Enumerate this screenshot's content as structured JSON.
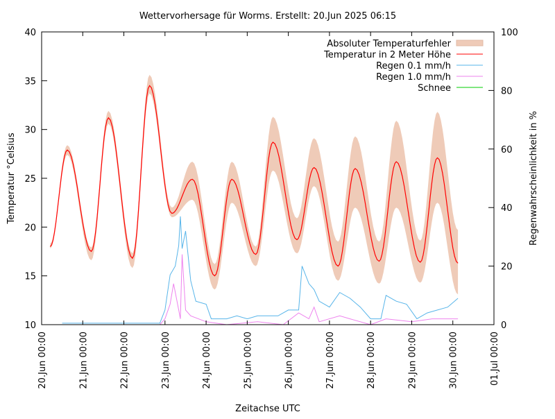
{
  "chart_data": {
    "type": "line",
    "title": "Wettervorhersage für Worms. Erstellt: 20.Jun 2025 06:15",
    "xlabel": "Zeitachse UTC",
    "ylabel": "Temperatur °Celsius",
    "y2label": "Regenwahrscheinlichkeit in %",
    "xlim": [
      "2025-06-20 00:00",
      "2025-07-01 00:00"
    ],
    "ylim": [
      10,
      40
    ],
    "y2lim": [
      0,
      100
    ],
    "xticks": [
      "20.Jun 00:00",
      "21.Jun 00:00",
      "22.Jun 00:00",
      "23.Jun 00:00",
      "24.Jun 00:00",
      "25.Jun 00:00",
      "26.Jun 00:00",
      "27.Jun 00:00",
      "28.Jun 00:00",
      "29.Jun 00:00",
      "30.Jun 00:00",
      "01.Jul 00:00"
    ],
    "yticks": [
      10,
      15,
      20,
      25,
      30,
      35,
      40
    ],
    "y2ticks": [
      0,
      20,
      40,
      60,
      80,
      100
    ],
    "grid": false,
    "legend_position": "top-right",
    "legend": [
      {
        "name": "Absoluter Temperaturfehler",
        "color": "#efcbb8",
        "kind": "band"
      },
      {
        "name": "Temperatur in 2 Meter Höhe",
        "color": "#ff0000",
        "kind": "line"
      },
      {
        "name": "Regen 0.1 mm/h",
        "color": "#56b4e9",
        "kind": "line"
      },
      {
        "name": "Regen 1.0 mm/h",
        "color": "#ee82ee",
        "kind": "line"
      },
      {
        "name": "Schnee",
        "color": "#00cc00",
        "kind": "line"
      }
    ],
    "temperature": {
      "name": "Temperatur in 2 Meter Höhe",
      "axis": "y",
      "points": [
        {
          "t": "2025-06-20 05:00",
          "v": 18.0,
          "lo": 17.8,
          "hi": 18.3
        },
        {
          "t": "2025-06-20 15:00",
          "v": 27.9,
          "lo": 27.4,
          "hi": 28.4
        },
        {
          "t": "2025-06-21 05:00",
          "v": 17.5,
          "lo": 16.6,
          "hi": 17.9
        },
        {
          "t": "2025-06-21 15:00",
          "v": 31.2,
          "lo": 30.6,
          "hi": 31.9
        },
        {
          "t": "2025-06-22 05:00",
          "v": 16.8,
          "lo": 15.8,
          "hi": 17.3
        },
        {
          "t": "2025-06-22 15:00",
          "v": 34.5,
          "lo": 33.7,
          "hi": 35.6
        },
        {
          "t": "2025-06-23 04:00",
          "v": 21.4,
          "lo": 21.0,
          "hi": 22.0
        },
        {
          "t": "2025-06-23 16:00",
          "v": 24.9,
          "lo": 22.8,
          "hi": 26.7
        },
        {
          "t": "2025-06-24 05:00",
          "v": 15.0,
          "lo": 13.6,
          "hi": 16.2
        },
        {
          "t": "2025-06-24 15:00",
          "v": 24.9,
          "lo": 22.5,
          "hi": 26.7
        },
        {
          "t": "2025-06-25 05:00",
          "v": 17.2,
          "lo": 16.0,
          "hi": 18.0
        },
        {
          "t": "2025-06-25 15:00",
          "v": 28.7,
          "lo": 25.8,
          "hi": 31.3
        },
        {
          "t": "2025-06-26 05:00",
          "v": 18.7,
          "lo": 17.3,
          "hi": 20.9
        },
        {
          "t": "2025-06-26 15:00",
          "v": 26.1,
          "lo": 24.2,
          "hi": 29.1
        },
        {
          "t": "2025-06-27 05:00",
          "v": 16.0,
          "lo": 14.5,
          "hi": 18.5
        },
        {
          "t": "2025-06-27 15:00",
          "v": 26.0,
          "lo": 22.0,
          "hi": 29.3
        },
        {
          "t": "2025-06-28 05:00",
          "v": 16.5,
          "lo": 14.2,
          "hi": 18.5
        },
        {
          "t": "2025-06-28 15:00",
          "v": 26.7,
          "lo": 22.0,
          "hi": 30.9
        },
        {
          "t": "2025-06-29 05:00",
          "v": 16.4,
          "lo": 14.3,
          "hi": 18.6
        },
        {
          "t": "2025-06-29 15:00",
          "v": 27.1,
          "lo": 22.5,
          "hi": 31.8
        },
        {
          "t": "2025-06-30 03:00",
          "v": 16.3,
          "lo": 13.1,
          "hi": 19.7
        }
      ]
    },
    "rain01": {
      "name": "Regen 0.1 mm/h",
      "axis": "y2",
      "points": [
        {
          "t": "2025-06-20 12:00",
          "v": 0.5
        },
        {
          "t": "2025-06-21 12:00",
          "v": 0.5
        },
        {
          "t": "2025-06-22 12:00",
          "v": 0.5
        },
        {
          "t": "2025-06-22 21:00",
          "v": 0.5
        },
        {
          "t": "2025-06-23 00:00",
          "v": 5
        },
        {
          "t": "2025-06-23 03:00",
          "v": 17
        },
        {
          "t": "2025-06-23 06:00",
          "v": 20
        },
        {
          "t": "2025-06-23 08:00",
          "v": 27
        },
        {
          "t": "2025-06-23 09:00",
          "v": 37
        },
        {
          "t": "2025-06-23 10:00",
          "v": 26
        },
        {
          "t": "2025-06-23 12:00",
          "v": 32
        },
        {
          "t": "2025-06-23 15:00",
          "v": 15
        },
        {
          "t": "2025-06-23 18:00",
          "v": 8
        },
        {
          "t": "2025-06-24 00:00",
          "v": 7
        },
        {
          "t": "2025-06-24 03:00",
          "v": 2
        },
        {
          "t": "2025-06-24 12:00",
          "v": 2
        },
        {
          "t": "2025-06-24 18:00",
          "v": 3
        },
        {
          "t": "2025-06-25 00:00",
          "v": 2
        },
        {
          "t": "2025-06-25 06:00",
          "v": 3
        },
        {
          "t": "2025-06-25 18:00",
          "v": 3
        },
        {
          "t": "2025-06-26 00:00",
          "v": 5
        },
        {
          "t": "2025-06-26 06:00",
          "v": 5
        },
        {
          "t": "2025-06-26 08:00",
          "v": 20
        },
        {
          "t": "2025-06-26 12:00",
          "v": 14
        },
        {
          "t": "2025-06-26 15:00",
          "v": 12
        },
        {
          "t": "2025-06-26 18:00",
          "v": 8
        },
        {
          "t": "2025-06-27 00:00",
          "v": 6
        },
        {
          "t": "2025-06-27 06:00",
          "v": 11
        },
        {
          "t": "2025-06-27 12:00",
          "v": 9
        },
        {
          "t": "2025-06-27 18:00",
          "v": 6
        },
        {
          "t": "2025-06-28 00:00",
          "v": 2
        },
        {
          "t": "2025-06-28 06:00",
          "v": 2
        },
        {
          "t": "2025-06-28 09:00",
          "v": 10
        },
        {
          "t": "2025-06-28 15:00",
          "v": 8
        },
        {
          "t": "2025-06-28 21:00",
          "v": 7
        },
        {
          "t": "2025-06-29 03:00",
          "v": 2
        },
        {
          "t": "2025-06-29 09:00",
          "v": 4
        },
        {
          "t": "2025-06-29 15:00",
          "v": 5
        },
        {
          "t": "2025-06-29 21:00",
          "v": 6
        },
        {
          "t": "2025-06-30 03:00",
          "v": 9
        }
      ]
    },
    "rain10": {
      "name": "Regen 1.0 mm/h",
      "axis": "y2",
      "points": [
        {
          "t": "2025-06-22 21:00",
          "v": 0
        },
        {
          "t": "2025-06-23 00:00",
          "v": 2
        },
        {
          "t": "2025-06-23 03:00",
          "v": 7
        },
        {
          "t": "2025-06-23 05:00",
          "v": 14
        },
        {
          "t": "2025-06-23 08:00",
          "v": 5
        },
        {
          "t": "2025-06-23 09:00",
          "v": 2
        },
        {
          "t": "2025-06-23 10:00",
          "v": 24
        },
        {
          "t": "2025-06-23 12:00",
          "v": 5
        },
        {
          "t": "2025-06-23 15:00",
          "v": 3
        },
        {
          "t": "2025-06-24 00:00",
          "v": 1
        },
        {
          "t": "2025-06-24 12:00",
          "v": 0
        },
        {
          "t": "2025-06-25 06:00",
          "v": 1
        },
        {
          "t": "2025-06-25 21:00",
          "v": 0
        },
        {
          "t": "2025-06-26 06:00",
          "v": 4
        },
        {
          "t": "2025-06-26 12:00",
          "v": 2
        },
        {
          "t": "2025-06-26 15:00",
          "v": 6
        },
        {
          "t": "2025-06-26 18:00",
          "v": 1
        },
        {
          "t": "2025-06-27 06:00",
          "v": 3
        },
        {
          "t": "2025-06-27 12:00",
          "v": 2
        },
        {
          "t": "2025-06-28 00:00",
          "v": 0
        },
        {
          "t": "2025-06-28 09:00",
          "v": 2
        },
        {
          "t": "2025-06-29 00:00",
          "v": 1
        },
        {
          "t": "2025-06-29 12:00",
          "v": 2
        },
        {
          "t": "2025-06-30 03:00",
          "v": 2
        }
      ]
    },
    "snow": {
      "name": "Schnee",
      "axis": "y2",
      "points": [
        {
          "t": "2025-06-20 05:00",
          "v": 0
        },
        {
          "t": "2025-06-30 03:00",
          "v": 0
        }
      ]
    }
  }
}
